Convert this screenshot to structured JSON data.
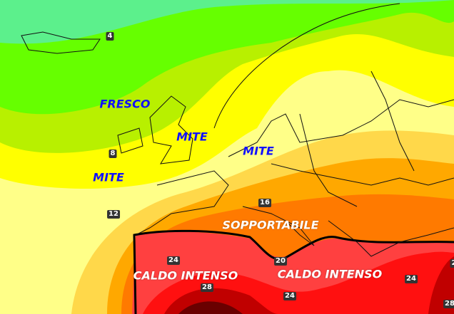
{
  "region_labels": [
    {
      "text": "FRESCO",
      "style": "blue"
    },
    {
      "text": "MITE",
      "style": "blue"
    },
    {
      "text": "MITE",
      "style": "blue"
    },
    {
      "text": "MITE",
      "style": "blue"
    },
    {
      "text": "SOPPORTABILE",
      "style": "white"
    },
    {
      "text": "CALDO INTENSO",
      "style": "white"
    },
    {
      "text": "CALDO INTENSO",
      "style": "white"
    }
  ],
  "isotherm_labels": [
    "4",
    "8",
    "12",
    "16",
    "20",
    "24",
    "24",
    "24",
    "28",
    "28",
    "2"
  ],
  "colors": {
    "cool_cyan": "#5cf08c",
    "green": "#66ff00",
    "lime": "#b8f000",
    "yellow": "#ffff00",
    "pale_yellow": "#ffff88",
    "light_orange": "#ffd84a",
    "orange": "#ffa800",
    "deep_orange": "#ff7a00",
    "red_light": "#ff4040",
    "red": "#ff1010",
    "dark_red": "#c00000",
    "maroon": "#6a0000"
  }
}
